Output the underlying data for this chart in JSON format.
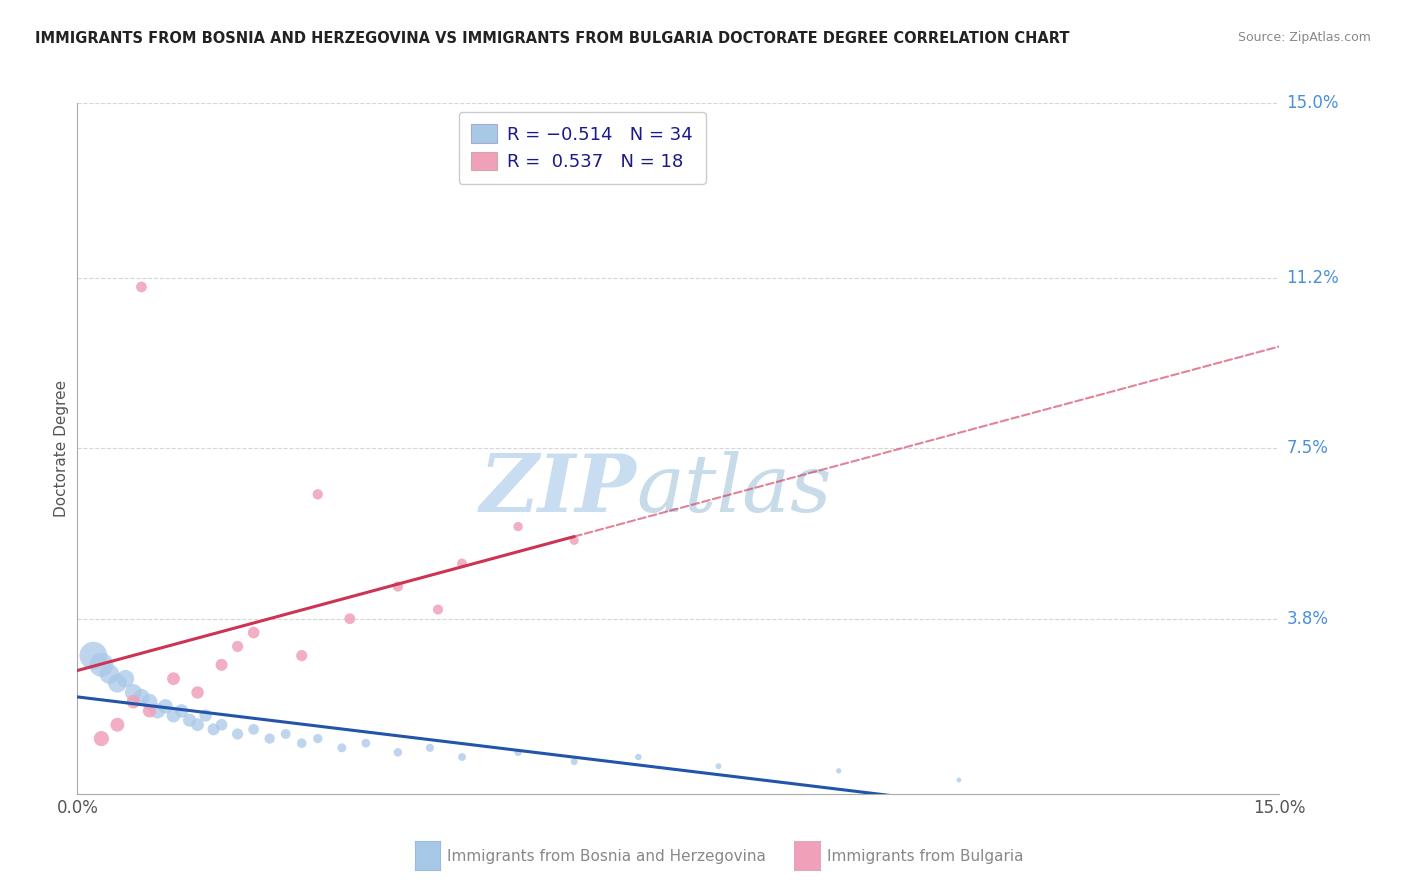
{
  "title": "IMMIGRANTS FROM BOSNIA AND HERZEGOVINA VS IMMIGRANTS FROM BULGARIA DOCTORATE DEGREE CORRELATION CHART",
  "source": "Source: ZipAtlas.com",
  "xlabel": "",
  "ylabel": "Doctorate Degree",
  "xlim": [
    0.0,
    0.15
  ],
  "ylim": [
    0.0,
    0.15
  ],
  "ytick_labels": [
    "3.8%",
    "7.5%",
    "11.2%",
    "15.0%"
  ],
  "ytick_values": [
    0.038,
    0.075,
    0.112,
    0.15
  ],
  "xtick_labels": [
    "0.0%",
    "15.0%"
  ],
  "xtick_values": [
    0.0,
    0.15
  ],
  "series_bosnia": {
    "color": "#a8c8e8",
    "line_color": "#2255aa",
    "x": [
      0.002,
      0.003,
      0.004,
      0.005,
      0.006,
      0.007,
      0.008,
      0.009,
      0.01,
      0.011,
      0.012,
      0.013,
      0.014,
      0.015,
      0.016,
      0.017,
      0.018,
      0.02,
      0.022,
      0.024,
      0.026,
      0.028,
      0.03,
      0.033,
      0.036,
      0.04,
      0.044,
      0.048,
      0.055,
      0.062,
      0.07,
      0.08,
      0.095,
      0.11
    ],
    "y": [
      0.03,
      0.028,
      0.026,
      0.024,
      0.025,
      0.022,
      0.021,
      0.02,
      0.018,
      0.019,
      0.017,
      0.018,
      0.016,
      0.015,
      0.017,
      0.014,
      0.015,
      0.013,
      0.014,
      0.012,
      0.013,
      0.011,
      0.012,
      0.01,
      0.011,
      0.009,
      0.01,
      0.008,
      0.009,
      0.007,
      0.008,
      0.006,
      0.005,
      0.003
    ],
    "sizes": [
      400,
      300,
      200,
      180,
      160,
      150,
      140,
      130,
      120,
      110,
      100,
      95,
      90,
      85,
      80,
      75,
      70,
      65,
      60,
      55,
      50,
      48,
      45,
      42,
      40,
      38,
      35,
      32,
      28,
      25,
      22,
      18,
      15,
      12
    ]
  },
  "series_bulgaria": {
    "color": "#f0a0b8",
    "line_color": "#cc3355",
    "x": [
      0.003,
      0.005,
      0.007,
      0.009,
      0.012,
      0.015,
      0.018,
      0.022,
      0.028,
      0.034,
      0.04,
      0.048,
      0.055,
      0.062,
      0.03,
      0.008,
      0.02,
      0.045
    ],
    "y": [
      0.012,
      0.015,
      0.02,
      0.018,
      0.025,
      0.022,
      0.028,
      0.035,
      0.03,
      0.038,
      0.045,
      0.05,
      0.058,
      0.055,
      0.065,
      0.11,
      0.032,
      0.04
    ],
    "sizes": [
      120,
      100,
      95,
      90,
      85,
      80,
      75,
      70,
      65,
      60,
      55,
      50,
      45,
      42,
      55,
      60,
      65,
      52
    ]
  },
  "watermark_zip": "ZIP",
  "watermark_atlas": "atlas",
  "background_color": "#ffffff",
  "grid_color": "#cccccc",
  "title_color": "#222222",
  "right_label_color": "#4a90d9",
  "bosnia_legend_color": "#a8c8e8",
  "bulgaria_legend_color": "#f0a0b8",
  "legend_text_r1": "R = −0.514",
  "legend_text_n1": "N = 34",
  "legend_text_r2": "R =  0.537",
  "legend_text_n2": "N = 18",
  "bosnia_label": "Immigrants from Bosnia and Herzegovina",
  "bulgaria_label": "Immigrants from Bulgaria"
}
